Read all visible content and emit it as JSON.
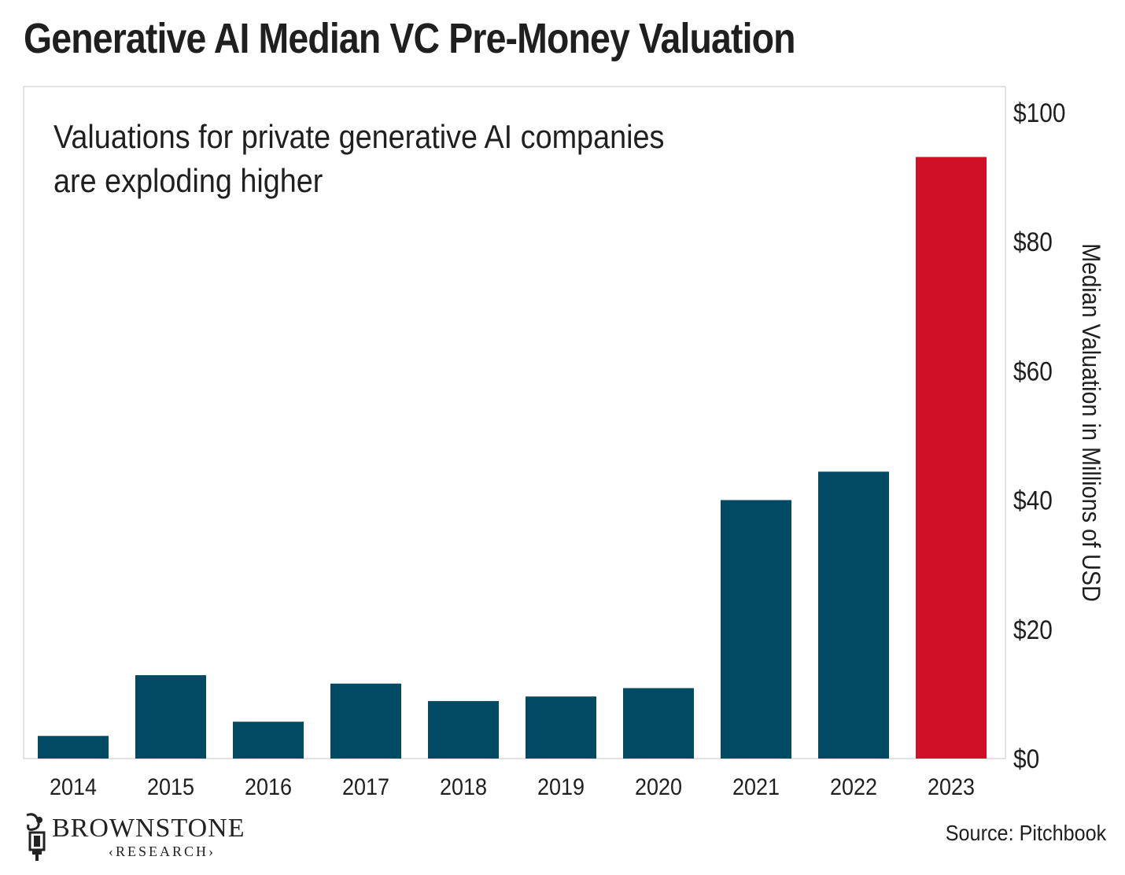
{
  "title": "Generative AI Median VC Pre-Money Valuation",
  "source": "Source: Pitchbook",
  "logo": {
    "name": "BROWNSTONE",
    "sub": "‹RESEARCH›"
  },
  "colors": {
    "bar": "#004a63",
    "highlight": "#ce1126",
    "frame": "#d9d9d9",
    "text": "#1f1f1f"
  },
  "chart_data": {
    "type": "bar",
    "annotation": [
      "Valuations for private generative AI companies",
      "are exploding higher"
    ],
    "categories": [
      "2014",
      "2015",
      "2016",
      "2017",
      "2018",
      "2019",
      "2020",
      "2021",
      "2022",
      "2023"
    ],
    "values": [
      3.5,
      12.9,
      5.7,
      11.6,
      8.9,
      9.6,
      10.9,
      40,
      44.4,
      93.1
    ],
    "highlight_index": 9,
    "ylabel": "Median Valuation in Millions of USD",
    "ylim": [
      0,
      104
    ],
    "yticks": [
      0,
      20,
      40,
      60,
      80,
      100
    ],
    "ytick_labels": [
      "$0",
      "$20",
      "$40",
      "$60",
      "$80",
      "$100"
    ],
    "yaxis_position": "right",
    "grid": false
  }
}
